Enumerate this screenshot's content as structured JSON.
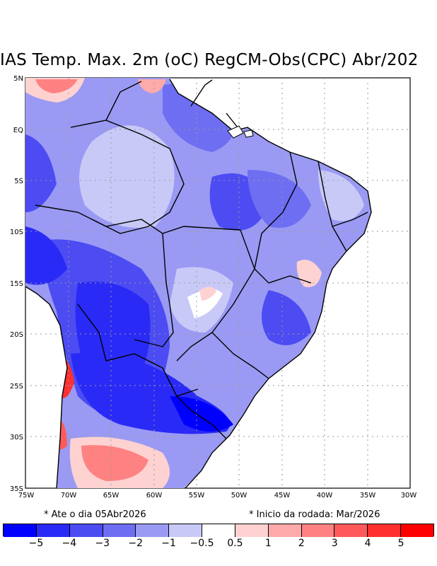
{
  "title": "IAS Temp. Max. 2m (oC) RegCM-Obs(CPC) Abr/202",
  "notes": {
    "left": "* Ate o dia 05Abr2026",
    "right": "* Inicio da rodada: Mar/2026"
  },
  "axes": {
    "lat_labels": [
      "5N",
      "EQ",
      "5S",
      "10S",
      "15S",
      "20S",
      "25S",
      "30S",
      "35S"
    ],
    "lon_labels": [
      "75W",
      "70W",
      "65W",
      "60W",
      "55W",
      "50W",
      "45W",
      "40W",
      "35W",
      "30W"
    ]
  },
  "colorbar": {
    "colors": [
      "#0000ff",
      "#2a2af6",
      "#4c4cf2",
      "#6e6ef2",
      "#9a9af4",
      "#c9c9f8",
      "#ffffff",
      "#ffd2d2",
      "#ffaaaa",
      "#ff8282",
      "#ff5a5a",
      "#ff2f2f",
      "#ff0000"
    ],
    "labels": [
      "−5",
      "−4",
      "−3",
      "−2",
      "−1",
      "−0.5",
      "0.5",
      "1",
      "2",
      "3",
      "4",
      "5"
    ]
  },
  "legend_colors": {
    "strong_cold": "#0000ff",
    "cold": "#4c4cf2",
    "mild_cold": "#9a9af4",
    "neutral": "#ffffff",
    "warm": "#ff8282",
    "hot": "#ff0000"
  }
}
